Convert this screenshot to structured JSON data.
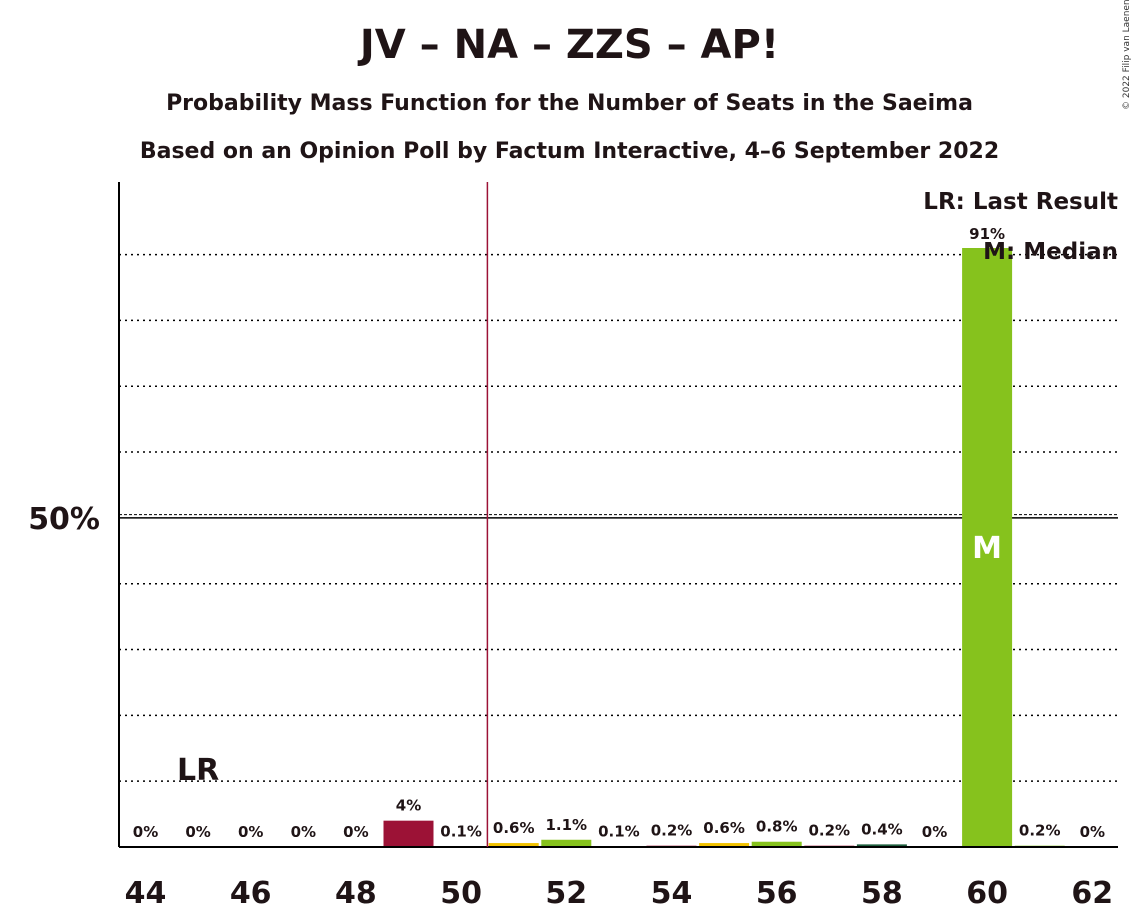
{
  "header": {
    "title": "JV – NA – ZZS – AP!",
    "subtitle": "Probability Mass Function for the Number of Seats in the Saeima",
    "subtitle2": "Based on an Opinion Poll by Factum Interactive, 4–6 September 2022",
    "copyright": "© 2022 Filip van Laenen"
  },
  "legend": {
    "last_result": "LR: Last Result",
    "median": "M: Median"
  },
  "chart_data": {
    "type": "bar",
    "x": [
      44,
      45,
      46,
      47,
      48,
      49,
      50,
      51,
      52,
      53,
      54,
      55,
      56,
      57,
      58,
      59,
      60,
      61,
      62
    ],
    "values": [
      0,
      0,
      0,
      0,
      0,
      4,
      0.1,
      0.6,
      1.1,
      0.1,
      0.2,
      0.6,
      0.8,
      0.2,
      0.4,
      0,
      91,
      0.2,
      0
    ],
    "value_labels": [
      "0%",
      "0%",
      "0%",
      "0%",
      "0%",
      "4%",
      "0.1%",
      "0.6%",
      "1.1%",
      "0.1%",
      "0.2%",
      "0.6%",
      "0.8%",
      "0.2%",
      "0.4%",
      "0%",
      "91%",
      "0.2%",
      "0%"
    ],
    "bar_colors": [
      "#9c1236",
      "#9c1236",
      "#9c1236",
      "#9c1236",
      "#9c1236",
      "#9c1236",
      "#9c1236",
      "#f2c200",
      "#86c21d",
      "#9c1236",
      "#9c1236",
      "#f2c200",
      "#86c21d",
      "#9c1236",
      "#1f5f3f",
      "#9c1236",
      "#86c21d",
      "#86c21d",
      "#86c21d"
    ],
    "xtick_labels": [
      "44",
      "46",
      "48",
      "50",
      "52",
      "54",
      "56",
      "58",
      "60",
      "62"
    ],
    "xtick_values": [
      44,
      46,
      48,
      50,
      52,
      54,
      56,
      58,
      60,
      62
    ],
    "ytick_label": "50%",
    "ytick_value": 50,
    "ylim": [
      0,
      100
    ],
    "gridlines": [
      10,
      20,
      30,
      40,
      60,
      70,
      80,
      90
    ],
    "majority_line": 50.5,
    "last_result": {
      "x": 45,
      "label": "LR"
    },
    "median": {
      "x": 60,
      "label": "M"
    },
    "median_color": "#ffffff",
    "accent_line_color": "#9c1236"
  }
}
